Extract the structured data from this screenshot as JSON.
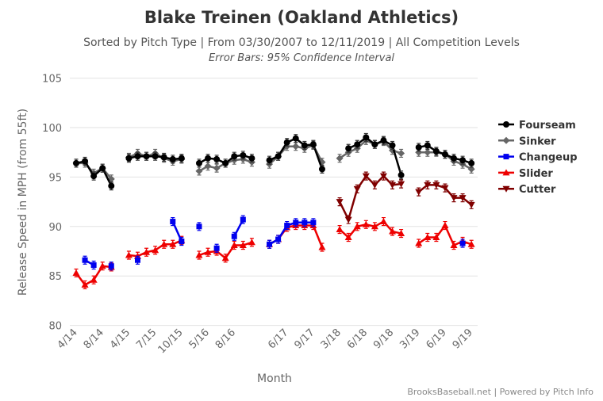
{
  "chart_data": {
    "type": "line",
    "title": "Blake Treinen (Oakland Athletics)",
    "subtitle": "Sorted by Pitch Type | From 03/30/2007 to 12/11/2019 | All Competition Levels",
    "subtitle2": "Error Bars: 95% Confidence Interval",
    "xlabel": "Month",
    "ylabel": "Release Speed in MPH (from 55ft)",
    "ylim": [
      80,
      105
    ],
    "yticks": [
      "80",
      "85",
      "90",
      "95",
      "100",
      "105"
    ],
    "grid": true,
    "legend_position": "right",
    "categories": [
      "4/14",
      "",
      "",
      "8/14",
      "",
      "",
      "4/15",
      "",
      "",
      "7/15",
      "",
      "",
      "10/15",
      "",
      "",
      "5/16",
      "",
      "",
      "8/16",
      "",
      "",
      "",
      "",
      "",
      "6/17",
      "",
      "",
      "9/17",
      "",
      "",
      "3/18",
      "",
      "",
      "6/18",
      "",
      "",
      "9/18",
      "",
      "",
      "3/19",
      "",
      "",
      "6/19",
      "",
      "",
      "9/19"
    ],
    "series": [
      {
        "name": "Fourseam",
        "color": "#000000",
        "marker": "circle",
        "values": [
          96.4,
          96.6,
          95.1,
          95.9,
          94.1,
          null,
          96.9,
          97.1,
          97.1,
          97.1,
          97.0,
          96.8,
          96.9,
          null,
          96.4,
          96.9,
          96.8,
          96.4,
          97.1,
          97.2,
          96.9,
          null,
          96.7,
          97.1,
          98.5,
          98.9,
          98.2,
          98.3,
          95.8,
          null,
          null,
          97.9,
          98.3,
          99.0,
          98.3,
          98.7,
          98.2,
          95.2,
          null,
          98.0,
          98.2,
          97.6,
          97.3,
          96.9,
          96.7,
          96.4
        ]
      },
      {
        "name": "Sinker",
        "color": "#666666",
        "marker": "diamond",
        "values": [
          96.4,
          96.4,
          95.4,
          95.9,
          94.8,
          null,
          97.0,
          97.4,
          97.1,
          97.4,
          96.9,
          96.6,
          96.8,
          null,
          95.6,
          96.1,
          95.9,
          96.4,
          96.7,
          96.8,
          96.5,
          null,
          96.3,
          97.1,
          98.1,
          98.1,
          97.9,
          98.2,
          96.5,
          null,
          96.9,
          97.5,
          97.9,
          98.7,
          98.3,
          98.6,
          97.7,
          97.4,
          null,
          97.5,
          97.5,
          97.5,
          97.3,
          96.6,
          96.3,
          95.8
        ]
      },
      {
        "name": "Changeup",
        "color": "#0000ee",
        "marker": "square",
        "values": [
          null,
          86.6,
          86.1,
          null,
          86.0,
          null,
          null,
          86.6,
          null,
          null,
          null,
          90.5,
          88.5,
          null,
          90.0,
          null,
          87.8,
          null,
          89.0,
          90.7,
          null,
          null,
          88.2,
          88.7,
          90.1,
          90.4,
          90.4,
          90.4,
          null,
          null,
          null,
          null,
          null,
          null,
          null,
          null,
          null,
          null,
          null,
          null,
          null,
          null,
          null,
          null,
          88.3,
          null
        ]
      },
      {
        "name": "Slider",
        "color": "#ee0000",
        "marker": "triangle",
        "values": [
          85.3,
          84.1,
          84.6,
          86.0,
          85.9,
          null,
          87.1,
          87.0,
          87.4,
          87.6,
          88.2,
          88.2,
          88.6,
          null,
          87.1,
          87.4,
          87.5,
          86.8,
          88.1,
          88.1,
          88.4,
          null,
          88.2,
          88.7,
          89.9,
          90.1,
          90.1,
          90.1,
          87.9,
          null,
          89.7,
          88.9,
          90.0,
          90.2,
          90.0,
          90.5,
          89.5,
          89.3,
          null,
          88.3,
          88.9,
          88.9,
          90.1,
          88.1,
          88.5,
          88.2
        ]
      },
      {
        "name": "Cutter",
        "color": "#800000",
        "marker": "triangle-down",
        "values": [
          null,
          null,
          null,
          null,
          null,
          null,
          null,
          null,
          null,
          null,
          null,
          null,
          null,
          null,
          null,
          null,
          null,
          null,
          null,
          null,
          null,
          null,
          null,
          null,
          null,
          null,
          null,
          null,
          null,
          null,
          92.5,
          90.7,
          93.8,
          95.1,
          94.2,
          95.1,
          94.2,
          94.3,
          null,
          93.5,
          94.2,
          94.2,
          93.9,
          92.9,
          92.9,
          92.2
        ]
      }
    ]
  },
  "credit": "BrooksBaseball.net | Powered by Pitch Info"
}
